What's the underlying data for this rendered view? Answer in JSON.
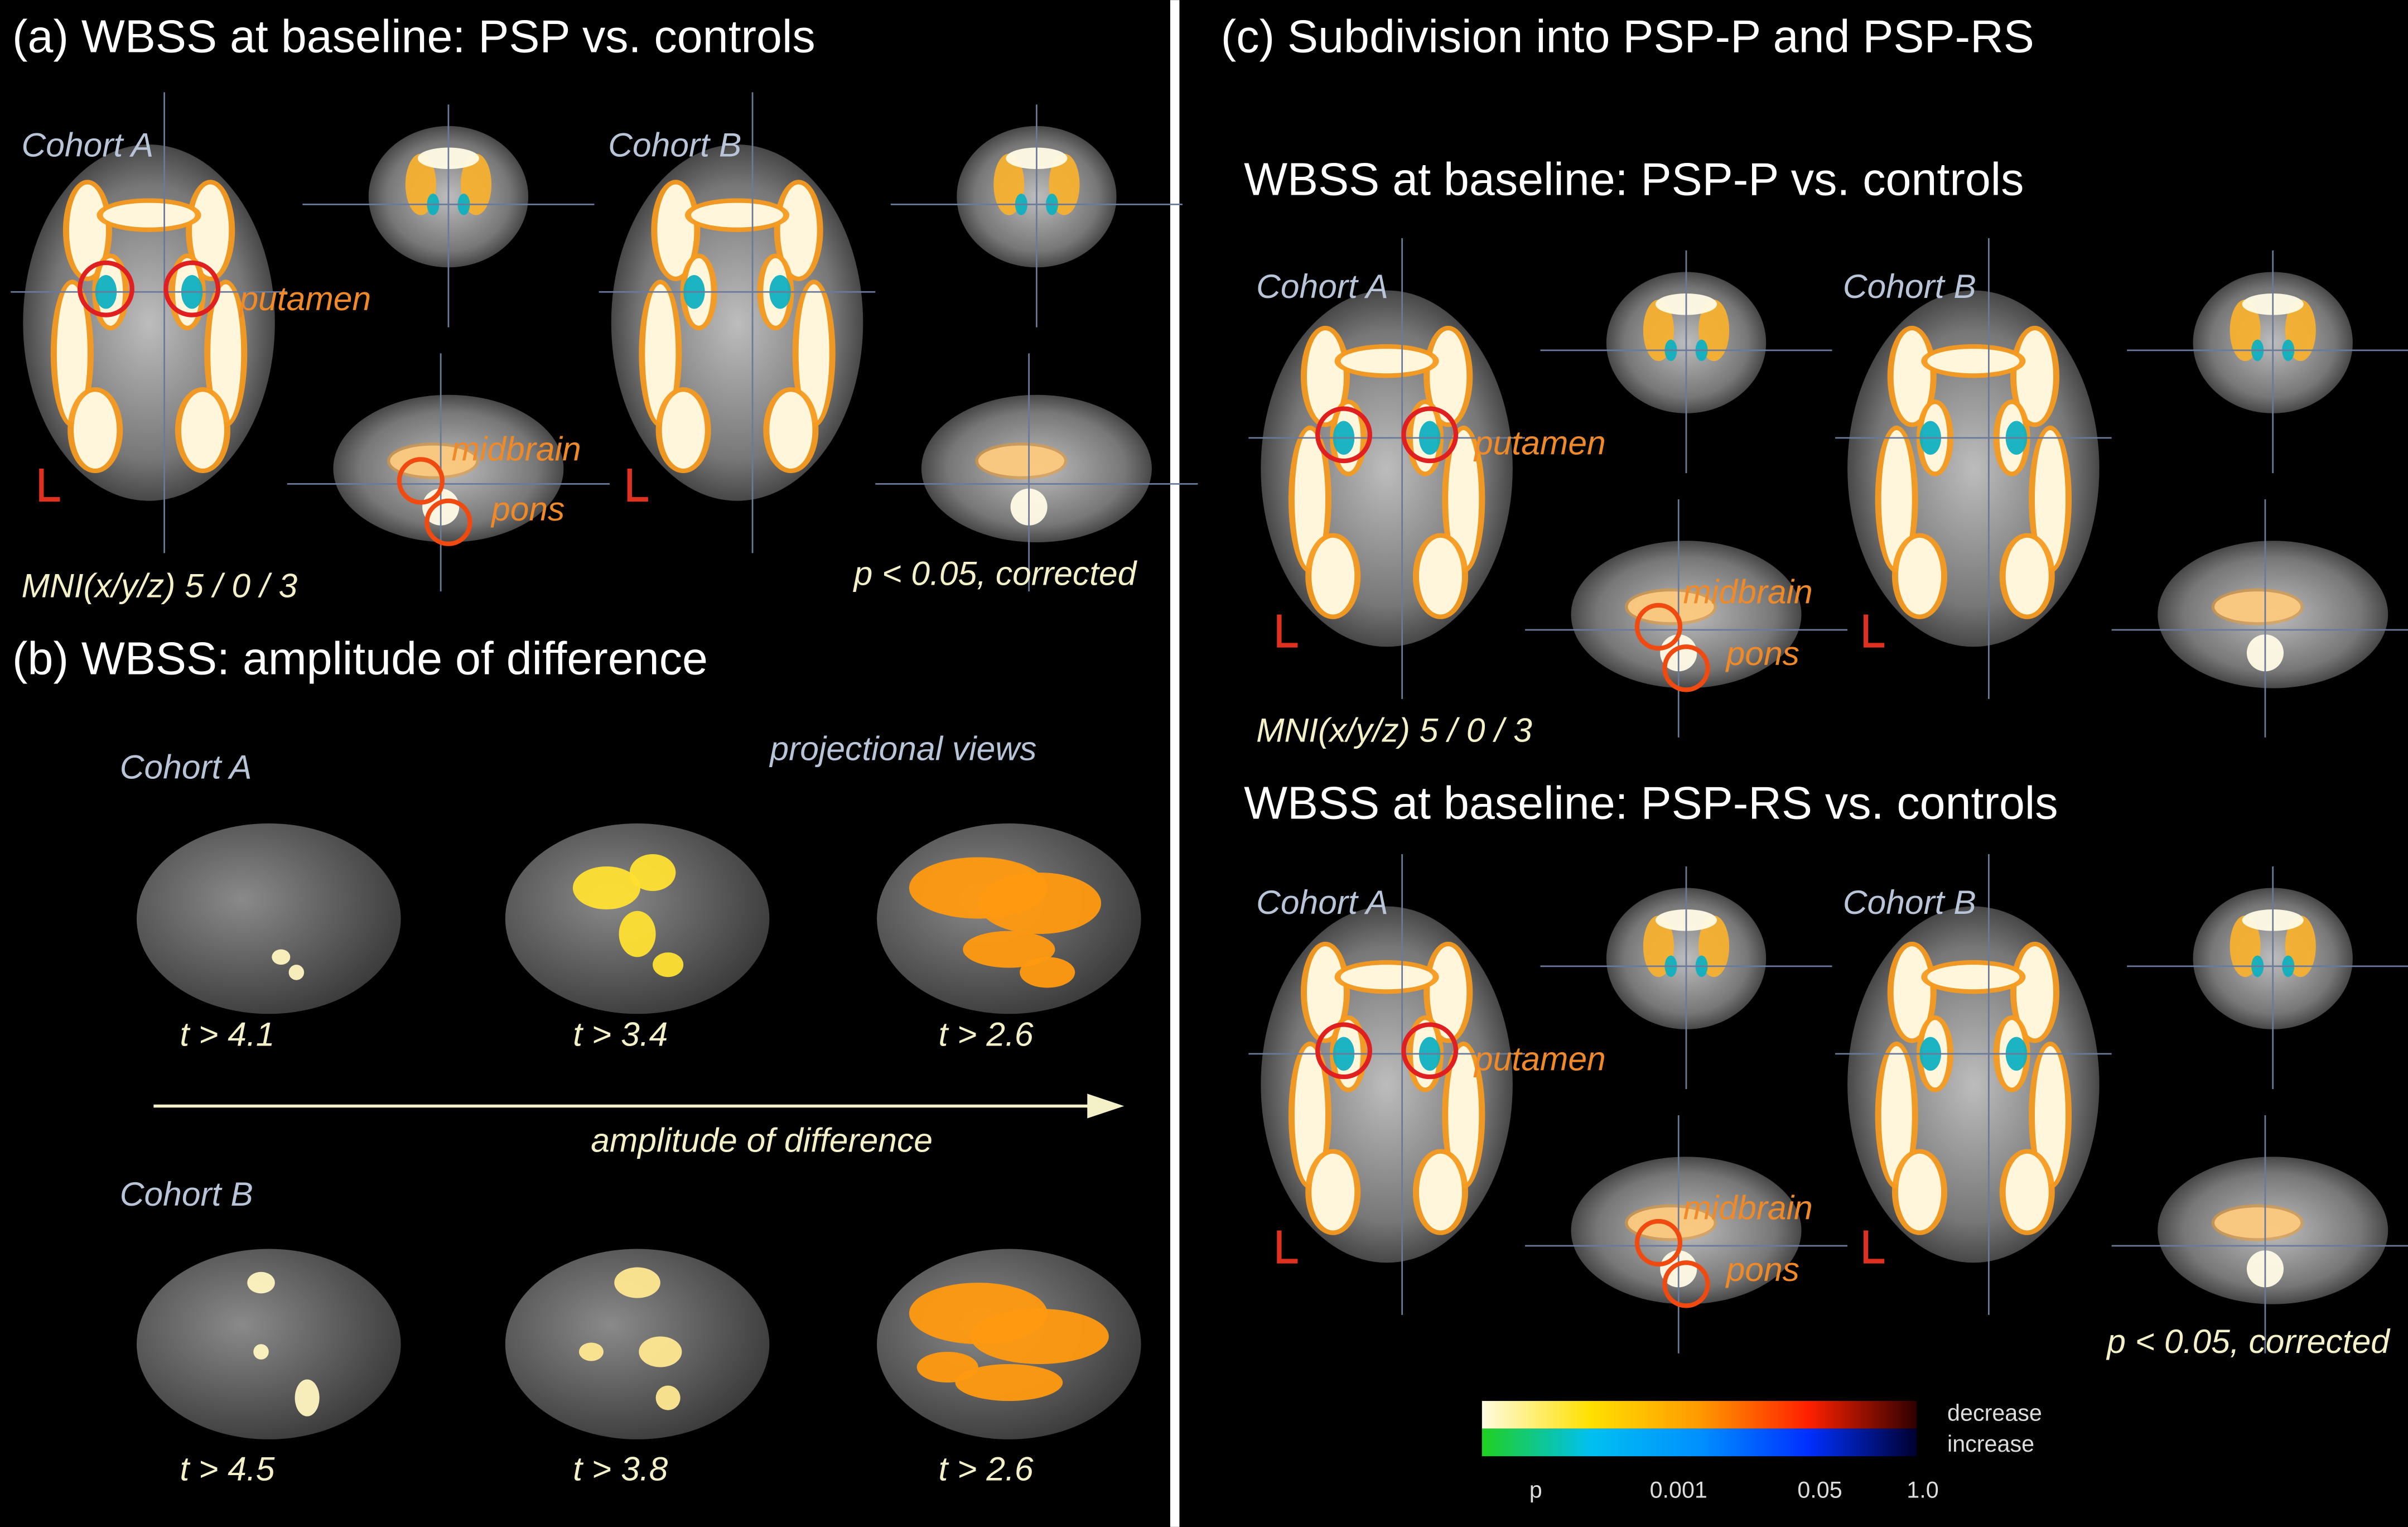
{
  "panel_a": {
    "title": "(a) WBSS at baseline: PSP vs. controls",
    "cohort_a": "Cohort A",
    "cohort_b": "Cohort B",
    "putamen": "putamen",
    "midbrain": "midbrain",
    "pons": "pons",
    "mni": "MNI(x/y/z) 5 / 0 / 3",
    "p_note": "p < 0.05, corrected"
  },
  "panel_b": {
    "title": "(b) WBSS: amplitude of difference",
    "cohort_a": "Cohort A",
    "projectional_views": "projectional views",
    "thresholds_a": [
      "t > 4.1",
      "t > 3.4",
      "t > 2.6"
    ],
    "arrow_label": "amplitude of difference",
    "cohort_b": "Cohort B",
    "thresholds_b": [
      "t > 4.5",
      "t > 3.8",
      "t > 2.6"
    ]
  },
  "panel_c": {
    "title": "(c) Subdivision into PSP-P and PSP-RS",
    "psp_p": {
      "title": "WBSS at baseline: PSP-P vs. controls",
      "cohort_a": "Cohort A",
      "cohort_b": "Cohort B",
      "putamen": "putamen",
      "midbrain": "midbrain",
      "pons": "pons",
      "mni": "MNI(x/y/z) 5 / 0 / 3"
    },
    "psp_rs": {
      "title": "WBSS at baseline: PSP-RS vs. controls",
      "cohort_a": "Cohort A",
      "cohort_b": "Cohort B",
      "putamen": "putamen",
      "midbrain": "midbrain",
      "pons": "pons",
      "p_note": "p < 0.05, corrected"
    }
  },
  "colorbar": {
    "decrease": "decrease",
    "increase": "increase",
    "ticks": [
      "p",
      "0.001",
      "0.05",
      "1.0"
    ]
  }
}
